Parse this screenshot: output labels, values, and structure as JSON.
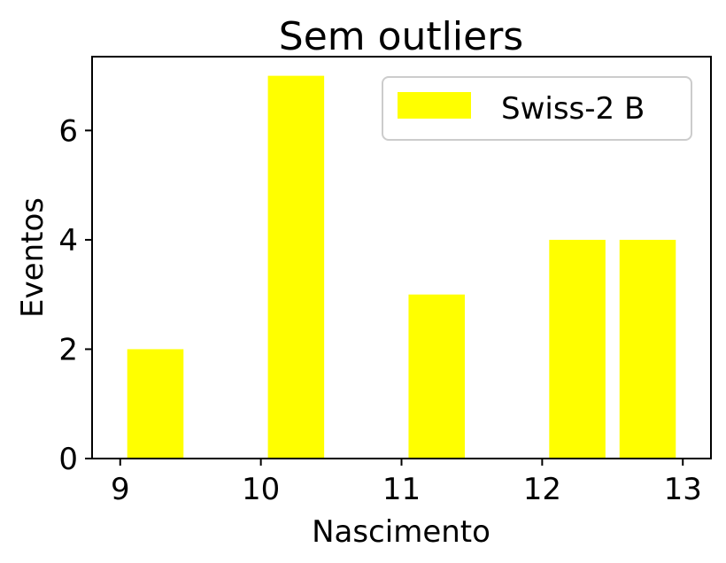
{
  "chart_data": {
    "type": "bar",
    "title": "Sem outliers",
    "xlabel": "Nascimento",
    "ylabel": "Eventos",
    "x_ticks": [
      "9",
      "10",
      "11",
      "12",
      "13"
    ],
    "y_ticks": [
      "0",
      "2",
      "4",
      "6"
    ],
    "xlim": [
      8.8,
      13.2
    ],
    "ylim": [
      0,
      7.35
    ],
    "series": [
      {
        "name": "Swiss-2 B",
        "color": "#ffff00",
        "bins": [
          {
            "start": 9.0,
            "end": 9.5,
            "value": 2
          },
          {
            "start": 10.0,
            "end": 10.5,
            "value": 7
          },
          {
            "start": 11.0,
            "end": 11.5,
            "value": 3
          },
          {
            "start": 11.5,
            "end": 12.0,
            "value": 0
          },
          {
            "start": 12.0,
            "end": 12.5,
            "value": 4
          },
          {
            "start": 12.5,
            "end": 13.0,
            "value": 4
          }
        ]
      }
    ],
    "legend_position": "top-right",
    "grid": false
  }
}
